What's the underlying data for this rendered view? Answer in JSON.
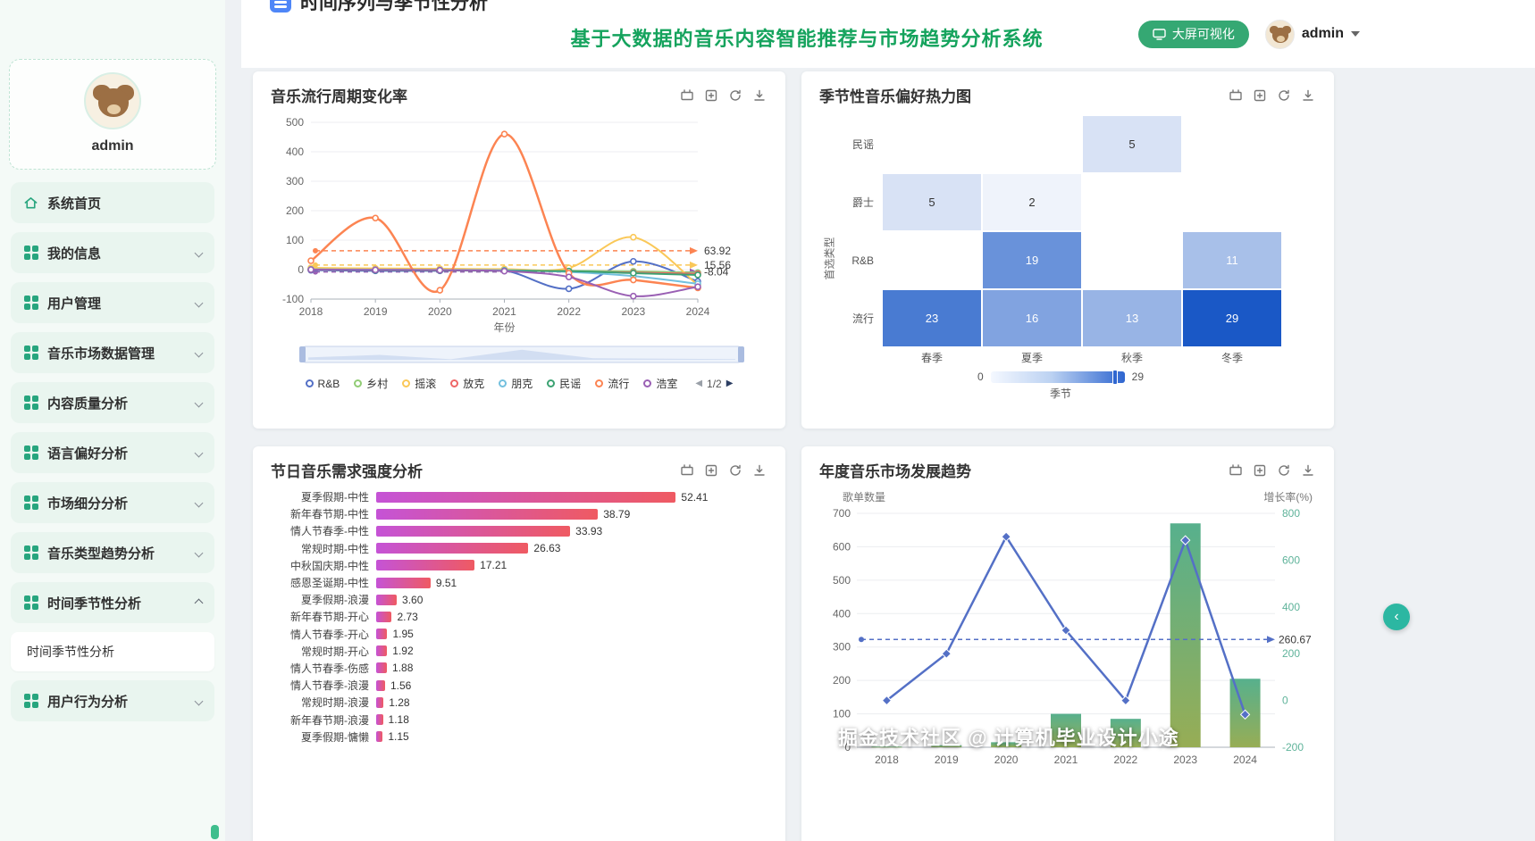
{
  "page_header": {
    "section_title": "时间序列与季节性分析",
    "app_title": "基于大数据的音乐内容智能推荐与市场趋势分析系统",
    "screen_button": "大屏可视化",
    "username": "admin"
  },
  "sidebar": {
    "profile_name": "admin",
    "items": [
      {
        "key": "home",
        "label": "系统首页",
        "icon": "home",
        "arrow": null,
        "active": false
      },
      {
        "key": "my-info",
        "label": "我的信息",
        "icon": "grid",
        "arrow": "down",
        "active": false
      },
      {
        "key": "user-mgmt",
        "label": "用户管理",
        "icon": "grid",
        "arrow": "down",
        "active": false
      },
      {
        "key": "music-market",
        "label": "音乐市场数据管理",
        "icon": "grid",
        "arrow": "down",
        "active": false
      },
      {
        "key": "content-quality",
        "label": "内容质量分析",
        "icon": "grid",
        "arrow": "down",
        "active": false
      },
      {
        "key": "language-pref",
        "label": "语言偏好分析",
        "icon": "grid",
        "arrow": "down",
        "active": false
      },
      {
        "key": "market-segment",
        "label": "市场细分分析",
        "icon": "grid",
        "arrow": "down",
        "active": false
      },
      {
        "key": "genre-trend",
        "label": "音乐类型趋势分析",
        "icon": "grid",
        "arrow": "down",
        "active": false
      },
      {
        "key": "time-season",
        "label": "时间季节性分析",
        "icon": "grid",
        "arrow": "up",
        "active": true,
        "submenu": [
          {
            "key": "time-season-sub",
            "label": "时间季节性分析",
            "active": true
          }
        ]
      },
      {
        "key": "user-behavior",
        "label": "用户行为分析",
        "icon": "grid",
        "arrow": "down",
        "active": false
      }
    ]
  },
  "watermark": "掘金技术社区 @ 计算机毕业设计小途",
  "chart_data": [
    {
      "type": "line",
      "title": "音乐流行周期变化率",
      "x": [
        "2018",
        "2019",
        "2020",
        "2021",
        "2022",
        "2023",
        "2024"
      ],
      "xlabel": "年份",
      "ylim": [
        -100,
        500
      ],
      "ytick_step": 100,
      "grid": true,
      "legend_position": "bottom",
      "legend_page": "1/2",
      "series": [
        {
          "name": "R&B",
          "color": "#5470c6",
          "values": [
            -2,
            -4,
            -4,
            -3,
            -65,
            28,
            -40
          ]
        },
        {
          "name": "乡村",
          "color": "#91cc75",
          "values": [
            2,
            0,
            0,
            -2,
            -4,
            -6,
            -10
          ]
        },
        {
          "name": "摇滚",
          "color": "#fac858",
          "values": [
            6,
            4,
            3,
            2,
            6,
            110,
            -52
          ]
        },
        {
          "name": "放克",
          "color": "#ee6666",
          "values": [
            0,
            -1,
            -2,
            -3,
            -6,
            -10,
            -14
          ]
        },
        {
          "name": "朋克",
          "color": "#73c0de",
          "values": [
            1,
            0,
            -1,
            -2,
            -8,
            -22,
            -48
          ]
        },
        {
          "name": "民谣",
          "color": "#3ba272",
          "values": [
            0,
            -2,
            -3,
            -4,
            -5,
            -12,
            -18
          ]
        },
        {
          "name": "流行",
          "color": "#fc8452",
          "values": [
            30,
            175,
            -70,
            460,
            -12,
            -35,
            -62
          ]
        },
        {
          "name": "浩室",
          "color": "#9a60b4",
          "values": [
            0,
            -1,
            -2,
            -5,
            -25,
            -90,
            -58
          ]
        }
      ],
      "marklines": [
        {
          "series": "流行",
          "value": 63.92,
          "color": "#fc8452"
        },
        {
          "series": "摇滚",
          "value": 15.56,
          "color": "#fac858"
        },
        {
          "series": "浩室",
          "value": -8.04,
          "color": "#9a60b4"
        }
      ]
    },
    {
      "type": "heatmap",
      "title": "季节性音乐偏好热力图",
      "x": [
        "春季",
        "夏季",
        "秋季",
        "冬季"
      ],
      "xlabel": "季节",
      "y": [
        "民谣",
        "爵士",
        "R&B",
        "流行"
      ],
      "ylabel": "首选类型",
      "values": [
        [
          null,
          null,
          5,
          null
        ],
        [
          5,
          2,
          null,
          null
        ],
        [
          null,
          19,
          null,
          11
        ],
        [
          23,
          16,
          13,
          29
        ]
      ],
      "visual_min": 0,
      "visual_max": 29,
      "color_low": "#ffffff",
      "color_high": "#1a58c6"
    },
    {
      "type": "bar",
      "title": "节日音乐需求强度分析",
      "orientation": "horizontal",
      "categories": [
        "夏季假期-中性",
        "新年春节期-中性",
        "情人节春季-中性",
        "常规时期-中性",
        "中秋国庆期-中性",
        "感恩圣诞期-中性",
        "夏季假期-浪漫",
        "新年春节期-开心",
        "情人节春季-开心",
        "常规时期-开心",
        "情人节春季-伤感",
        "情人节春季-浪漫",
        "常规时期-浪漫",
        "新年春节期-浪漫",
        "夏季假期-慵懒"
      ],
      "values": [
        52.41,
        38.79,
        33.93,
        26.63,
        17.21,
        9.51,
        3.6,
        2.73,
        1.95,
        1.92,
        1.88,
        1.56,
        1.28,
        1.18,
        1.15
      ],
      "bar_color_start": "#c553d6",
      "bar_color_end": "#ef5a62"
    },
    {
      "type": "bar+line",
      "title": "年度音乐市场发展趋势",
      "categories": [
        "2018",
        "2019",
        "2020",
        "2021",
        "2022",
        "2023",
        "2024"
      ],
      "left_axis": {
        "name": "歌单数量",
        "min": 0,
        "max": 700,
        "step": 100
      },
      "right_axis": {
        "name": "增长率(%)",
        "min": -200,
        "max": 800,
        "step": 200
      },
      "bars": {
        "name": "歌单数量",
        "values": [
          2,
          6,
          15,
          100,
          85,
          670,
          205
        ],
        "color_top": "#57b08d",
        "color_bottom": "#97ad55"
      },
      "line": {
        "name": "增长率",
        "values": [
          0,
          200,
          700,
          300,
          0,
          685,
          -60
        ],
        "color": "#5470c6"
      },
      "markline": {
        "value": 260.67,
        "color": "#5470c6"
      }
    }
  ]
}
